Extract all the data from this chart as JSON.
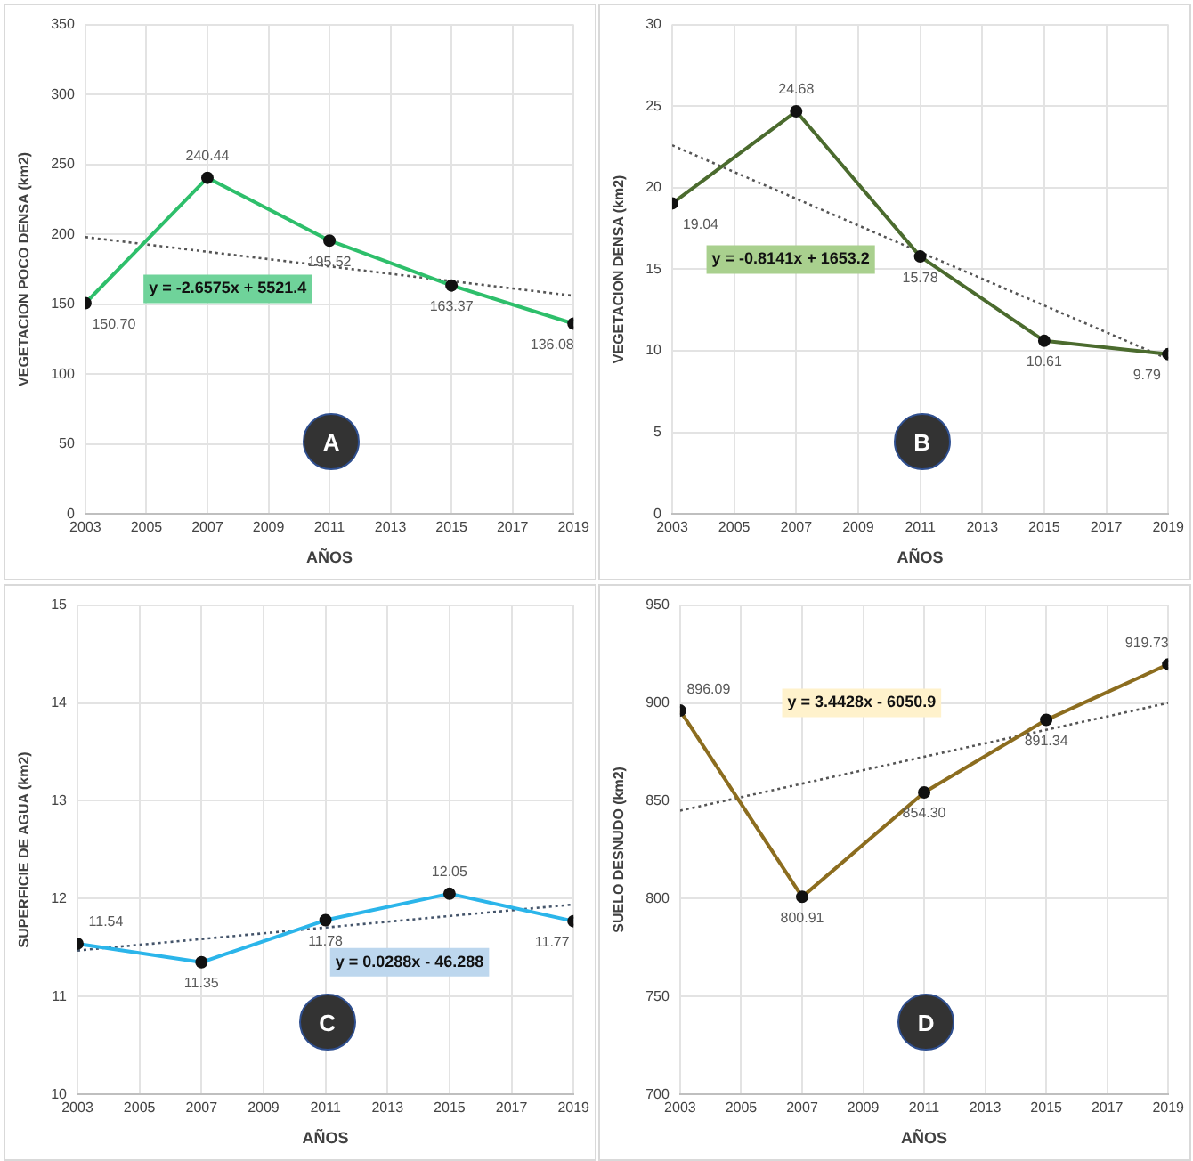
{
  "chart_data": [
    {
      "type": "line",
      "xlabel": "AÑOS",
      "ylabel": "VEGETACION POCO DENSA (km2)",
      "x": [
        2003,
        2007,
        2011,
        2015,
        2019
      ],
      "xlim": [
        2003,
        2019
      ],
      "xticks": [
        2003,
        2005,
        2007,
        2009,
        2011,
        2013,
        2015,
        2017,
        2019
      ],
      "ylim": [
        0,
        350
      ],
      "yticks": [
        0,
        50,
        100,
        150,
        200,
        250,
        300,
        350
      ],
      "grid": true,
      "annotations": [
        "y = -2.6575x + 5521.4",
        "A"
      ],
      "series": [
        {
          "color": "#2ebf6b",
          "values": [
            150.7,
            240.44,
            195.52,
            163.37,
            136.08
          ],
          "value_labels": [
            "150.70",
            "240.44",
            "195.52",
            "163.37",
            "136.08"
          ],
          "marker": "circle",
          "line_style": "solid"
        },
        {
          "type": "line",
          "color": "#555555",
          "values": [
            198,
            null,
            null,
            null,
            156
          ],
          "marker": "none",
          "line_style": "dotted"
        }
      ]
    },
    {
      "type": "line",
      "xlabel": "AÑOS",
      "ylabel": "VEGETACION DENSA (km2)",
      "x": [
        2003,
        2007,
        2011,
        2015,
        2019
      ],
      "xlim": [
        2003,
        2019
      ],
      "xticks": [
        2003,
        2005,
        2007,
        2009,
        2011,
        2013,
        2015,
        2017,
        2019
      ],
      "ylim": [
        0,
        30
      ],
      "yticks": [
        0,
        5,
        10,
        15,
        20,
        25,
        30
      ],
      "grid": true,
      "annotations": [
        "y = -0.8141x + 1653.2",
        "B"
      ],
      "series": [
        {
          "color": "#4b6b2e",
          "values": [
            19.04,
            24.68,
            15.78,
            10.61,
            9.79
          ],
          "value_labels": [
            "19.04",
            "24.68",
            "15.78",
            "10.61",
            "9.79"
          ],
          "marker": "circle",
          "line_style": "solid"
        },
        {
          "type": "line",
          "color": "#555555",
          "values": [
            22.6,
            null,
            null,
            null,
            9.5
          ],
          "marker": "none",
          "line_style": "dotted"
        }
      ]
    },
    {
      "type": "line",
      "xlabel": "AÑOS",
      "ylabel": "SUPERFICIE DE AGUA (km2)",
      "x": [
        2003,
        2007,
        2011,
        2015,
        2019
      ],
      "xlim": [
        2003,
        2019
      ],
      "xticks": [
        2003,
        2005,
        2007,
        2009,
        2011,
        2013,
        2015,
        2017,
        2019
      ],
      "ylim": [
        10,
        15
      ],
      "yticks": [
        10,
        11,
        12,
        13,
        14,
        15
      ],
      "grid": true,
      "annotations": [
        "y = 0.0288x - 46.288",
        "C"
      ],
      "series": [
        {
          "color": "#2bb5ea",
          "values": [
            11.54,
            11.35,
            11.78,
            12.05,
            11.77
          ],
          "value_labels": [
            "11.54",
            "11.35",
            "11.78",
            "12.05",
            "11.77"
          ],
          "marker": "circle",
          "line_style": "solid"
        },
        {
          "type": "line",
          "color": "#44546a",
          "values": [
            11.47,
            null,
            null,
            null,
            11.94
          ],
          "marker": "none",
          "line_style": "dotted"
        }
      ]
    },
    {
      "type": "line",
      "xlabel": "AÑOS",
      "ylabel": "SUELO DESNUDO (km2)",
      "x": [
        2003,
        2007,
        2011,
        2015,
        2019
      ],
      "xlim": [
        2003,
        2019
      ],
      "xticks": [
        2003,
        2005,
        2007,
        2009,
        2011,
        2013,
        2015,
        2017,
        2019
      ],
      "ylim": [
        700,
        950
      ],
      "yticks": [
        700,
        750,
        800,
        850,
        900,
        950
      ],
      "grid": true,
      "annotations": [
        "y = 3.4428x - 6050.9",
        "D"
      ],
      "series": [
        {
          "color": "#8c6d1f",
          "values": [
            896.09,
            800.91,
            854.3,
            891.34,
            919.73
          ],
          "value_labels": [
            "896.09",
            "800.91",
            "854.30",
            "891.34",
            "919.73"
          ],
          "marker": "circle",
          "line_style": "solid"
        },
        {
          "type": "line",
          "color": "#555555",
          "values": [
            845,
            null,
            null,
            null,
            900
          ],
          "marker": "none",
          "line_style": "dotted"
        }
      ]
    }
  ]
}
